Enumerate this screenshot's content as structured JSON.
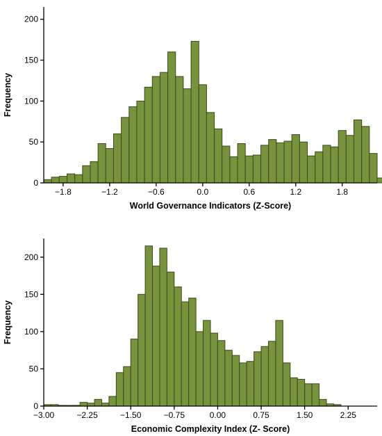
{
  "colors": {
    "bar_fill": "#77933c",
    "bar_stroke": "#3a4a1c",
    "axis": "#000000"
  },
  "chart_data": [
    {
      "type": "bar",
      "title": "",
      "xlabel": "World Governance Indicators (Z-Score)",
      "ylabel": "Frequency",
      "bin_width": 0.1,
      "x_start": -2.05,
      "xlim": [
        -2.05,
        2.25
      ],
      "ylim": [
        0,
        215
      ],
      "x_ticks": [
        -1.8,
        -1.2,
        -0.6,
        0.0,
        0.6,
        1.2,
        1.8
      ],
      "x_tick_labels": [
        "−1.8",
        "−1.2",
        "−0.6",
        "0.0",
        "0.6",
        "1.2",
        "1.8"
      ],
      "y_ticks": [
        0,
        50,
        100,
        150,
        200
      ],
      "y_tick_labels": [
        "0",
        "50",
        "100",
        "150",
        "200"
      ],
      "values": [
        4,
        7,
        8,
        11,
        10,
        21,
        26,
        48,
        42,
        60,
        80,
        93,
        100,
        117,
        130,
        135,
        160,
        130,
        115,
        173,
        120,
        86,
        66,
        45,
        32,
        48,
        33,
        34,
        46,
        53,
        49,
        51,
        59,
        50,
        33,
        38,
        46,
        44,
        64,
        58,
        77,
        69,
        36,
        6
      ]
    },
    {
      "type": "bar",
      "title": "",
      "xlabel": "Economic Complexity Index (Z- Score)",
      "ylabel": "Frequency",
      "bin_width": 0.125,
      "x_start": -3.0,
      "xlim": [
        -3.0,
        2.75
      ],
      "ylim": [
        0,
        225
      ],
      "x_ticks": [
        -3.0,
        -2.25,
        -1.5,
        -0.75,
        0.0,
        0.75,
        1.5,
        2.25
      ],
      "x_tick_labels": [
        "−3.00",
        "−2.25",
        "−1.50",
        "−0.75",
        "0.00",
        "0.75",
        "1.50",
        "2.25"
      ],
      "y_ticks": [
        0,
        50,
        100,
        150,
        200
      ],
      "y_tick_labels": [
        "0",
        "50",
        "100",
        "150",
        "200"
      ],
      "values": [
        2,
        2,
        1,
        1,
        1,
        5,
        4,
        9,
        4,
        13,
        45,
        53,
        90,
        150,
        215,
        188,
        212,
        180,
        160,
        140,
        145,
        100,
        115,
        98,
        88,
        75,
        68,
        58,
        60,
        73,
        80,
        87,
        115,
        58,
        38,
        36,
        30,
        30,
        9,
        3,
        2
      ]
    }
  ]
}
